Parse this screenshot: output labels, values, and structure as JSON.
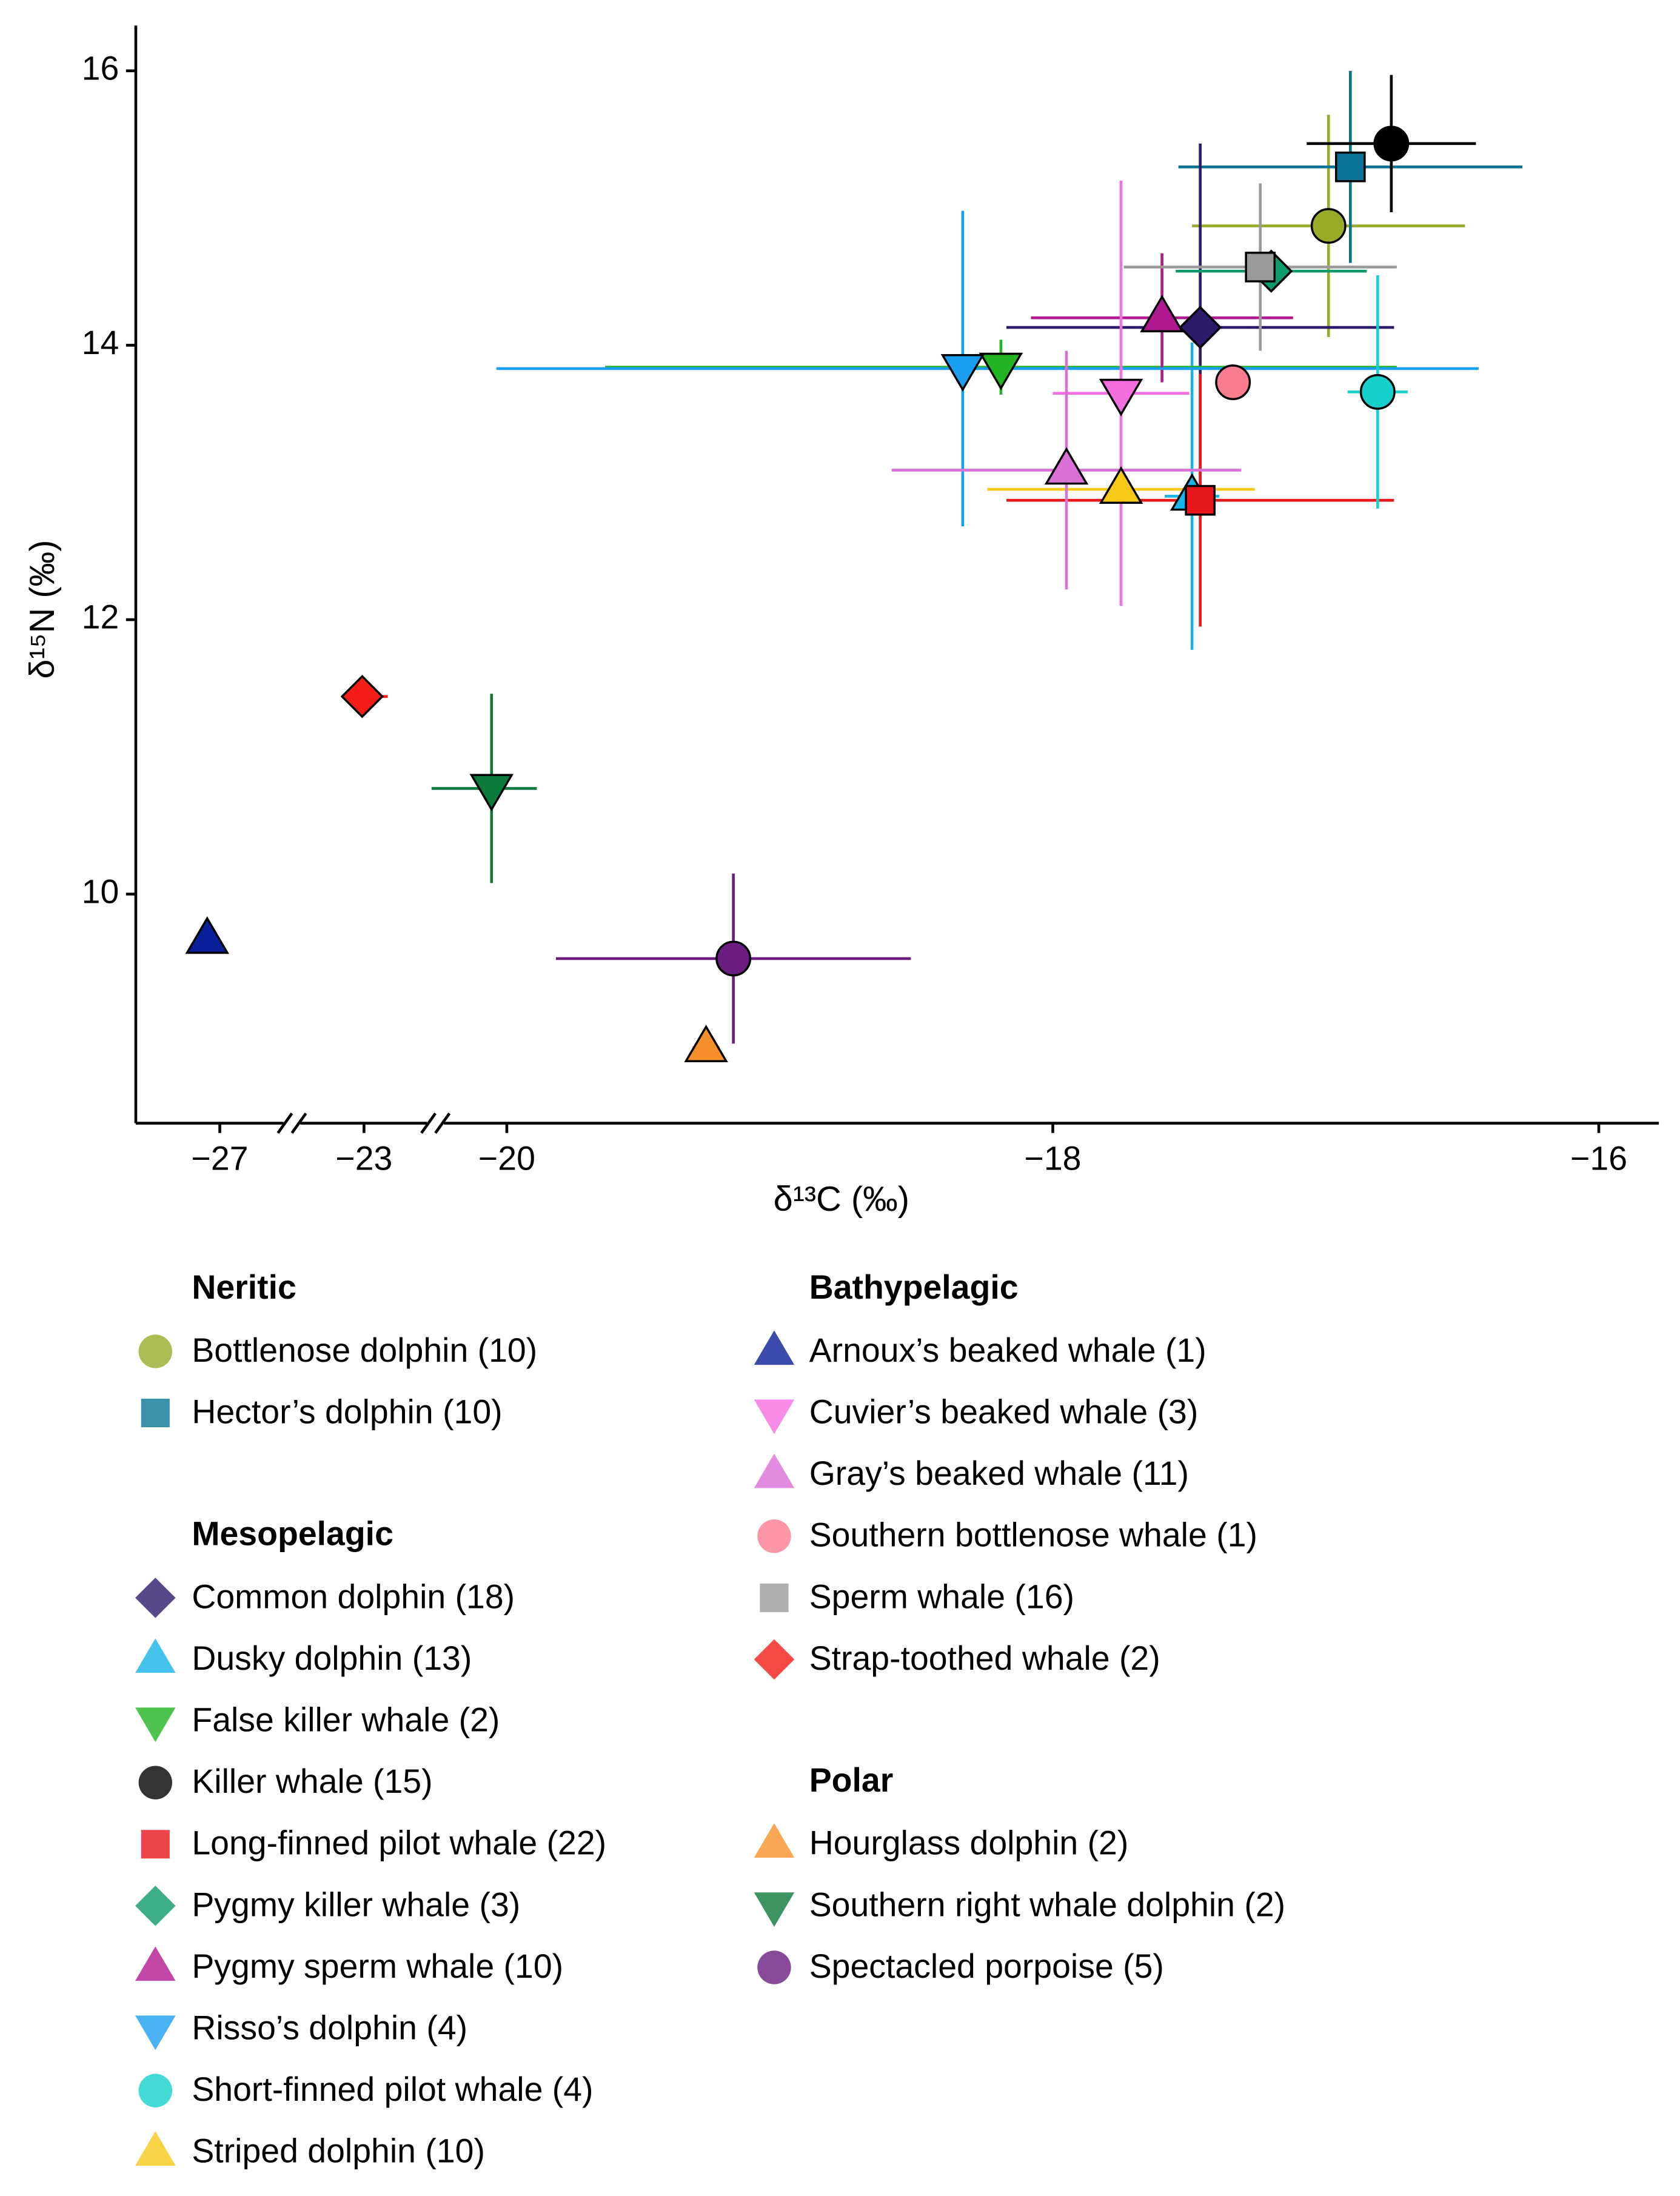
{
  "chart_data": {
    "type": "scatter",
    "xlabel": "δ¹³C (‰)",
    "ylabel": "δ¹⁵N (‰)",
    "xlim": [
      -29.3,
      -15.78
    ],
    "ylim": [
      8.33,
      16.33
    ],
    "xticks": [
      {
        "value": -27,
        "label": "−27"
      },
      {
        "value": -23,
        "label": "−23"
      },
      {
        "value": -20,
        "label": "−20"
      },
      {
        "value": -18,
        "label": "−18"
      },
      {
        "value": -16,
        "label": "−16"
      }
    ],
    "yticks": [
      10,
      12,
      14,
      16
    ],
    "groups": [
      {
        "title": "Neritic",
        "series": [
          {
            "name": "Bottlenose dolphin (10)",
            "color": "#9aab2a",
            "marker": "circle",
            "x": -16.99,
            "y": 14.87,
            "xerr": 0.5,
            "yerr": 0.81
          },
          {
            "name": "Hector’s dolphin (10)",
            "color": "#0a7496",
            "marker": "square",
            "x": -16.91,
            "y": 15.3,
            "xerr": 0.63,
            "yerr": 0.7
          }
        ]
      },
      {
        "title": "Mesopelagic",
        "series": [
          {
            "name": "Common dolphin (18)",
            "color": "#2d1a6b",
            "marker": "diamond",
            "x": -17.46,
            "y": 14.13,
            "xerr": 0.71,
            "yerr": 1.34
          },
          {
            "name": "Dusky dolphin (13)",
            "color": "#18b4e8",
            "marker": "triangle-up",
            "x": -17.49,
            "y": 12.9,
            "xerr": 0.1,
            "yerr": 1.12
          },
          {
            "name": "False killer whale (2)",
            "color": "#22b422",
            "marker": "triangle-down",
            "x": -18.19,
            "y": 13.84,
            "xerr": 1.45,
            "yerr": 0.2
          },
          {
            "name": "Killer whale (15)",
            "color": "#000000",
            "marker": "circle",
            "x": -16.76,
            "y": 15.47,
            "xerr": 0.31,
            "yerr": 0.5
          },
          {
            "name": "Long-finned pilot whale (22)",
            "color": "#e8171b",
            "marker": "square",
            "x": -17.46,
            "y": 12.87,
            "xerr": 0.71,
            "yerr": 0.92
          },
          {
            "name": "Pygmy killer whale (3)",
            "color": "#0e9a6a",
            "marker": "diamond",
            "x": -17.2,
            "y": 14.54,
            "xerr": 0.35,
            "yerr": 0.05
          },
          {
            "name": "Pygmy sperm whale (10)",
            "color": "#b0198f",
            "marker": "triangle-up",
            "x": -17.6,
            "y": 14.2,
            "xerr": 0.48,
            "yerr": 0.47
          },
          {
            "name": "Risso’s dolphin (4)",
            "color": "#1a9ff0",
            "marker": "triangle-down",
            "x": -18.33,
            "y": 13.83,
            "xerr": 1.89,
            "yerr": 1.15
          },
          {
            "name": "Short-finned pilot whale (4)",
            "color": "#17d0cc",
            "marker": "circle",
            "x": -16.81,
            "y": 13.66,
            "xerr": 0.11,
            "yerr": 0.85
          },
          {
            "name": "Striped dolphin (10)",
            "color": "#f7c818",
            "marker": "triangle-up",
            "x": -17.75,
            "y": 12.95,
            "xerr": 0.49,
            "yerr": 0.05
          }
        ]
      },
      {
        "title": "Bathypelagic",
        "series": [
          {
            "name": "Arnoux’s beaked whale (1)",
            "color": "#0b1f99",
            "marker": "triangle-up",
            "x": -27.35,
            "y": 9.67
          },
          {
            "name": "Cuvier’s beaked whale (3)",
            "color": "#f56ee0",
            "marker": "triangle-down",
            "x": -17.75,
            "y": 13.65,
            "xerr": 0.25,
            "yerr": 1.55
          },
          {
            "name": "Gray’s beaked whale (11)",
            "color": "#da6fd6",
            "marker": "triangle-up",
            "x": -17.95,
            "y": 13.09,
            "xerr": 0.64,
            "yerr": 0.87
          },
          {
            "name": "Southern bottlenose whale (1)",
            "color": "#f97c8f",
            "marker": "circle",
            "x": -17.34,
            "y": 13.73
          },
          {
            "name": "Sperm whale (16)",
            "color": "#9a9a9a",
            "marker": "square",
            "x": -17.24,
            "y": 14.57,
            "xerr": 0.5,
            "yerr": 0.61
          },
          {
            "name": "Strap-toothed whale (2)",
            "color": "#f21d14",
            "marker": "diamond",
            "x": -23.05,
            "y": 11.44,
            "xerr": 0.55,
            "yerr": 0.07
          }
        ]
      },
      {
        "title": "Polar",
        "series": [
          {
            "name": "Hourglass dolphin (2)",
            "color": "#f7902a",
            "marker": "triangle-up",
            "x": -19.27,
            "y": 8.88,
            "xerr": 0.05,
            "yerr": 0.1
          },
          {
            "name": "Southern right whale dolphin (2)",
            "color": "#0b7a3a",
            "marker": "triangle-down",
            "x": -20.32,
            "y": 10.77,
            "xerr": [
              1.26,
              0.43
            ],
            "yerr": 0.69
          },
          {
            "name": "Spectacled porpoise (5)",
            "color": "#6b1e7f",
            "marker": "circle",
            "x": -19.17,
            "y": 9.53,
            "xerr": 0.65,
            "yerr": 0.62
          }
        ]
      }
    ]
  }
}
